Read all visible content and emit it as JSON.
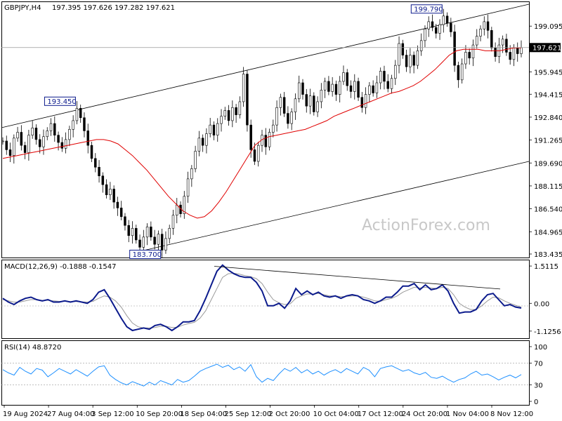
{
  "header": {
    "symbol": "GBPJPY,H4",
    "ohlc": "197.395 197.626 197.282 197.621"
  },
  "watermark": "ActionForex.com",
  "colors": {
    "price": "#000000",
    "ma": "#e00000",
    "channel": "#000000",
    "macd_line": "#0b1a8c",
    "macd_signal": "#9a9a9a",
    "rsi": "#1e90ff",
    "annotation": "#0b1a8c"
  },
  "chart_data": [
    {
      "type": "line",
      "panel": "price",
      "x_labels": [
        "19 Aug 2024",
        "27 Aug 04:00",
        "3 Sep 12:00",
        "10 Sep 20:00",
        "18 Sep 04:00",
        "25 Sep 12:00",
        "2 Oct 20:00",
        "10 Oct 04:00",
        "17 Oct 12:00",
        "24 Oct 20:00",
        "1 Nov 04:00",
        "8 Nov 12:00"
      ],
      "y_ticks": [
        "199.095",
        "197.621",
        "195.945",
        "194.415",
        "192.840",
        "191.265",
        "189.690",
        "188.115",
        "186.540",
        "184.965",
        "183.435"
      ],
      "ylim": [
        183.435,
        200.6
      ],
      "last_price": "197.621",
      "annotations": [
        "193.450",
        "183.700",
        "199.790"
      ],
      "series": [
        {
          "role": "price",
          "values": [
            191.2,
            190.6,
            190.2,
            191.4,
            191.8,
            190.9,
            190.4,
            191.6,
            192.1,
            191.3,
            190.8,
            191.5,
            191.9,
            192.4,
            191.6,
            191.1,
            190.7,
            191.3,
            192.0,
            192.6,
            193.45,
            192.8,
            191.9,
            190.9,
            190.0,
            189.4,
            188.8,
            188.2,
            187.5,
            187.9,
            187.0,
            186.6,
            186.0,
            185.4,
            184.7,
            185.2,
            184.4,
            183.9,
            184.6,
            185.3,
            184.6,
            184.1,
            184.8,
            183.7,
            184.5,
            185.2,
            186.1,
            186.8,
            186.2,
            187.4,
            188.6,
            189.3,
            190.5,
            191.4,
            190.9,
            191.7,
            192.3,
            191.6,
            192.4,
            192.9,
            193.3,
            192.6,
            193.5,
            193.0,
            193.9,
            195.8,
            192.3,
            190.6,
            189.8,
            190.9,
            191.6,
            190.8,
            191.8,
            192.3,
            193.5,
            194.2,
            193.1,
            192.4,
            193.2,
            194.1,
            195.2,
            194.4,
            193.6,
            194.3,
            193.2,
            193.9,
            194.7,
            195.3,
            194.6,
            195.1,
            194.4,
            195.3,
            195.9,
            195.0,
            194.6,
            195.3,
            194.2,
            193.5,
            194.4,
            195.0,
            194.5,
            195.2,
            196.0,
            195.3,
            194.8,
            195.5,
            196.4,
            197.9,
            197.1,
            196.3,
            197.1,
            196.4,
            197.4,
            198.1,
            198.9,
            199.4,
            199.0,
            198.6,
            199.2,
            199.79,
            199.3,
            198.7,
            196.4,
            195.4,
            196.5,
            197.3,
            196.9,
            197.8,
            198.4,
            198.9,
            199.4,
            198.8,
            197.6,
            197.0,
            197.8,
            198.2,
            197.3,
            196.8,
            197.6,
            197.2,
            197.621
          ]
        },
        {
          "role": "ma",
          "values": [
            190.0,
            190.1,
            190.2,
            190.3,
            190.4,
            190.5,
            190.6,
            190.7,
            190.8,
            190.9,
            191.0,
            191.1,
            191.2,
            191.3,
            191.3,
            191.2,
            191.0,
            190.6,
            190.2,
            189.7,
            189.2,
            188.6,
            188.0,
            187.4,
            186.9,
            186.4,
            186.1,
            185.9,
            186.0,
            186.4,
            187.0,
            187.7,
            188.5,
            189.3,
            190.1,
            190.9,
            191.3,
            191.5,
            191.6,
            191.7,
            191.8,
            191.9,
            192.0,
            192.2,
            192.4,
            192.6,
            192.9,
            193.1,
            193.3,
            193.5,
            193.7,
            193.9,
            194.1,
            194.3,
            194.5,
            194.6,
            194.8,
            195.0,
            195.3,
            195.7,
            196.1,
            196.6,
            197.1,
            197.4,
            197.5,
            197.5,
            197.5,
            197.4,
            197.4,
            197.4,
            197.5,
            197.6,
            197.6
          ]
        }
      ]
    },
    {
      "type": "line",
      "panel": "macd",
      "label": "MACD(12,26,9) -0.1888 -0.1547",
      "y_ticks": [
        "1.5115",
        "0.00",
        "-1.1256"
      ],
      "ylim": [
        -1.3,
        1.6
      ],
      "series": [
        {
          "role": "macd",
          "values": [
            0.2,
            0.05,
            -0.05,
            0.1,
            0.2,
            0.25,
            0.15,
            0.1,
            0.15,
            0.05,
            0.05,
            0.1,
            0.05,
            0.1,
            0.05,
            0.0,
            0.15,
            0.45,
            0.55,
            0.2,
            -0.2,
            -0.6,
            -0.95,
            -1.1,
            -1.05,
            -1.0,
            -1.05,
            -0.9,
            -0.85,
            -0.95,
            -1.1,
            -0.95,
            -0.75,
            -0.75,
            -0.7,
            -0.3,
            0.2,
            0.75,
            1.3,
            1.55,
            1.35,
            1.2,
            1.1,
            1.05,
            1.05,
            0.85,
            0.5,
            -0.1,
            -0.1,
            0.0,
            -0.2,
            0.1,
            0.6,
            0.35,
            0.5,
            0.35,
            0.45,
            0.3,
            0.25,
            0.3,
            0.2,
            0.3,
            0.35,
            0.3,
            0.15,
            0.1,
            0.0,
            0.1,
            0.25,
            0.25,
            0.45,
            0.7,
            0.7,
            0.8,
            0.55,
            0.75,
            0.55,
            0.6,
            0.75,
            0.5,
            0.0,
            -0.4,
            -0.35,
            -0.35,
            -0.25,
            0.1,
            0.35,
            0.4,
            0.15,
            -0.1,
            -0.05,
            -0.15,
            -0.19
          ]
        },
        {
          "role": "signal",
          "values": [
            0.15,
            0.1,
            0.05,
            0.05,
            0.1,
            0.15,
            0.15,
            0.12,
            0.12,
            0.1,
            0.08,
            0.08,
            0.07,
            0.07,
            0.06,
            0.05,
            0.08,
            0.2,
            0.3,
            0.25,
            0.1,
            -0.15,
            -0.5,
            -0.8,
            -0.95,
            -1.0,
            -1.0,
            -0.98,
            -0.93,
            -0.93,
            -0.98,
            -0.97,
            -0.88,
            -0.82,
            -0.77,
            -0.6,
            -0.3,
            0.15,
            0.6,
            1.05,
            1.2,
            1.22,
            1.18,
            1.12,
            1.08,
            1.0,
            0.8,
            0.45,
            0.15,
            0.02,
            -0.05,
            -0.02,
            0.2,
            0.3,
            0.38,
            0.37,
            0.4,
            0.35,
            0.3,
            0.3,
            0.27,
            0.28,
            0.3,
            0.3,
            0.25,
            0.18,
            0.1,
            0.08,
            0.15,
            0.2,
            0.3,
            0.45,
            0.55,
            0.65,
            0.62,
            0.65,
            0.62,
            0.6,
            0.65,
            0.6,
            0.35,
            0.0,
            -0.15,
            -0.25,
            -0.25,
            -0.1,
            0.1,
            0.25,
            0.22,
            0.1,
            0.0,
            -0.08,
            -0.15
          ]
        },
        {
          "role": "trendline",
          "values": [
            1.5,
            0.58
          ]
        }
      ]
    },
    {
      "type": "line",
      "panel": "rsi",
      "label": "RSI(14) 48.8720",
      "y_ticks": [
        "100",
        "70",
        "30",
        "0"
      ],
      "ylim": [
        0,
        100
      ],
      "levels": [
        70,
        30
      ],
      "series": [
        {
          "role": "rsi",
          "values": [
            58,
            52,
            48,
            62,
            55,
            50,
            60,
            57,
            45,
            52,
            60,
            55,
            50,
            58,
            52,
            46,
            55,
            63,
            65,
            48,
            40,
            34,
            30,
            36,
            32,
            28,
            35,
            30,
            38,
            34,
            30,
            40,
            35,
            38,
            46,
            55,
            60,
            64,
            68,
            62,
            66,
            58,
            63,
            55,
            67,
            45,
            35,
            42,
            38,
            50,
            60,
            55,
            62,
            52,
            58,
            50,
            55,
            48,
            54,
            58,
            52,
            60,
            55,
            50,
            62,
            57,
            45,
            60,
            63,
            65,
            60,
            55,
            58,
            52,
            49,
            53,
            44,
            42,
            46,
            40,
            35,
            40,
            43,
            50,
            55,
            48,
            50,
            45,
            39,
            44,
            48,
            43,
            49
          ]
        }
      ]
    }
  ]
}
